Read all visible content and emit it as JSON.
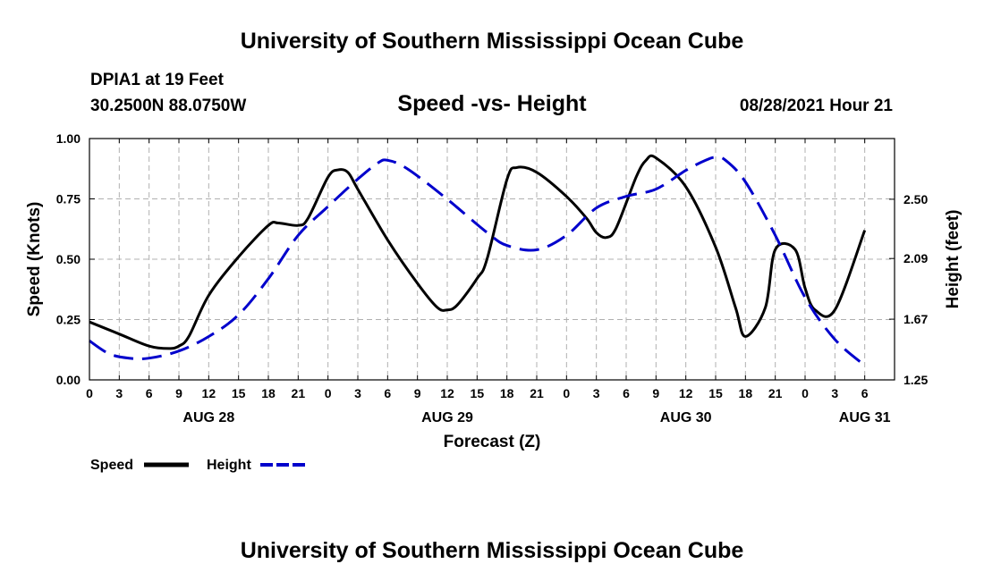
{
  "header": {
    "title_top": "University of Southern Mississippi Ocean Cube",
    "station": "DPIA1 at 19 Feet",
    "location": "30.2500N  88.0750W",
    "chart_title": "Speed -vs- Height",
    "datetime": "08/28/2021 Hour 21",
    "title_bottom": "University of Southern Mississippi Ocean Cube"
  },
  "legend": {
    "speed_label": "Speed",
    "height_label": "Height"
  },
  "colors": {
    "speed": "#000000",
    "height": "#0000cc",
    "grid": "#b0b0b0"
  },
  "chart_data": {
    "type": "line",
    "title": "Speed -vs- Height",
    "xlabel": "Forecast (Z)",
    "ylabel_left": "Speed (Knots)",
    "ylabel_right": "Height (feet)",
    "x_range": [
      0,
      81
    ],
    "y_left_range": [
      0,
      1
    ],
    "y_right_range": [
      1.25,
      2.92
    ],
    "x_ticks": [
      {
        "x": 0,
        "label": "0"
      },
      {
        "x": 3,
        "label": "3"
      },
      {
        "x": 6,
        "label": "6"
      },
      {
        "x": 9,
        "label": "9"
      },
      {
        "x": 12,
        "label": "12"
      },
      {
        "x": 15,
        "label": "15"
      },
      {
        "x": 18,
        "label": "18"
      },
      {
        "x": 21,
        "label": "21"
      },
      {
        "x": 24,
        "label": "0"
      },
      {
        "x": 27,
        "label": "3"
      },
      {
        "x": 30,
        "label": "6"
      },
      {
        "x": 33,
        "label": "9"
      },
      {
        "x": 36,
        "label": "12"
      },
      {
        "x": 39,
        "label": "15"
      },
      {
        "x": 42,
        "label": "18"
      },
      {
        "x": 45,
        "label": "21"
      },
      {
        "x": 48,
        "label": "0"
      },
      {
        "x": 51,
        "label": "3"
      },
      {
        "x": 54,
        "label": "6"
      },
      {
        "x": 57,
        "label": "9"
      },
      {
        "x": 60,
        "label": "12"
      },
      {
        "x": 63,
        "label": "15"
      },
      {
        "x": 66,
        "label": "18"
      },
      {
        "x": 69,
        "label": "21"
      },
      {
        "x": 72,
        "label": "0"
      },
      {
        "x": 75,
        "label": "3"
      },
      {
        "x": 78,
        "label": "6"
      }
    ],
    "date_labels": [
      {
        "x": 12,
        "label": "AUG 28"
      },
      {
        "x": 36,
        "label": "AUG 29"
      },
      {
        "x": 60,
        "label": "AUG 30"
      },
      {
        "x": 78,
        "label": "AUG 31"
      }
    ],
    "y_left_ticks": [
      {
        "v": 0,
        "label": "0.00"
      },
      {
        "v": 0.25,
        "label": "0.25"
      },
      {
        "v": 0.5,
        "label": "0.50"
      },
      {
        "v": 0.75,
        "label": "0.75"
      },
      {
        "v": 1.0,
        "label": "1.00"
      }
    ],
    "y_right_ticks": [
      {
        "v": 1.25,
        "label": "1.25"
      },
      {
        "v": 1.67,
        "label": "1.67"
      },
      {
        "v": 2.09,
        "label": "2.09"
      },
      {
        "v": 2.5,
        "label": "2.50"
      }
    ],
    "series": [
      {
        "name": "Speed",
        "axis": "left",
        "style": "solid",
        "x": [
          0,
          3,
          6,
          8,
          9,
          10,
          12,
          15,
          18,
          19,
          21,
          22,
          24,
          25,
          26,
          27,
          30,
          33,
          35,
          36,
          37,
          39,
          40,
          42,
          43,
          45,
          48,
          50,
          51,
          52,
          53,
          55,
          56,
          57,
          60,
          63,
          65,
          66,
          68,
          69,
          71,
          72,
          73,
          75,
          78
        ],
        "values": [
          0.24,
          0.19,
          0.14,
          0.13,
          0.14,
          0.18,
          0.35,
          0.51,
          0.64,
          0.65,
          0.64,
          0.67,
          0.84,
          0.87,
          0.86,
          0.79,
          0.58,
          0.4,
          0.3,
          0.29,
          0.31,
          0.42,
          0.5,
          0.83,
          0.88,
          0.86,
          0.76,
          0.67,
          0.61,
          0.59,
          0.63,
          0.84,
          0.91,
          0.92,
          0.8,
          0.55,
          0.3,
          0.18,
          0.3,
          0.54,
          0.54,
          0.38,
          0.29,
          0.29,
          0.62
        ]
      },
      {
        "name": "Height",
        "axis": "right",
        "style": "dashed",
        "x": [
          0,
          2,
          4,
          6,
          9,
          12,
          15,
          18,
          21,
          24,
          27,
          29,
          30,
          32,
          36,
          40,
          42,
          45,
          48,
          51,
          54,
          57,
          60,
          62,
          63,
          64,
          66,
          69,
          72,
          75,
          78
        ],
        "values": [
          1.52,
          1.43,
          1.4,
          1.4,
          1.45,
          1.55,
          1.7,
          1.95,
          2.25,
          2.45,
          2.64,
          2.75,
          2.77,
          2.71,
          2.5,
          2.27,
          2.18,
          2.15,
          2.25,
          2.44,
          2.52,
          2.57,
          2.7,
          2.77,
          2.79,
          2.77,
          2.62,
          2.25,
          1.82,
          1.53,
          1.35
        ]
      }
    ]
  }
}
